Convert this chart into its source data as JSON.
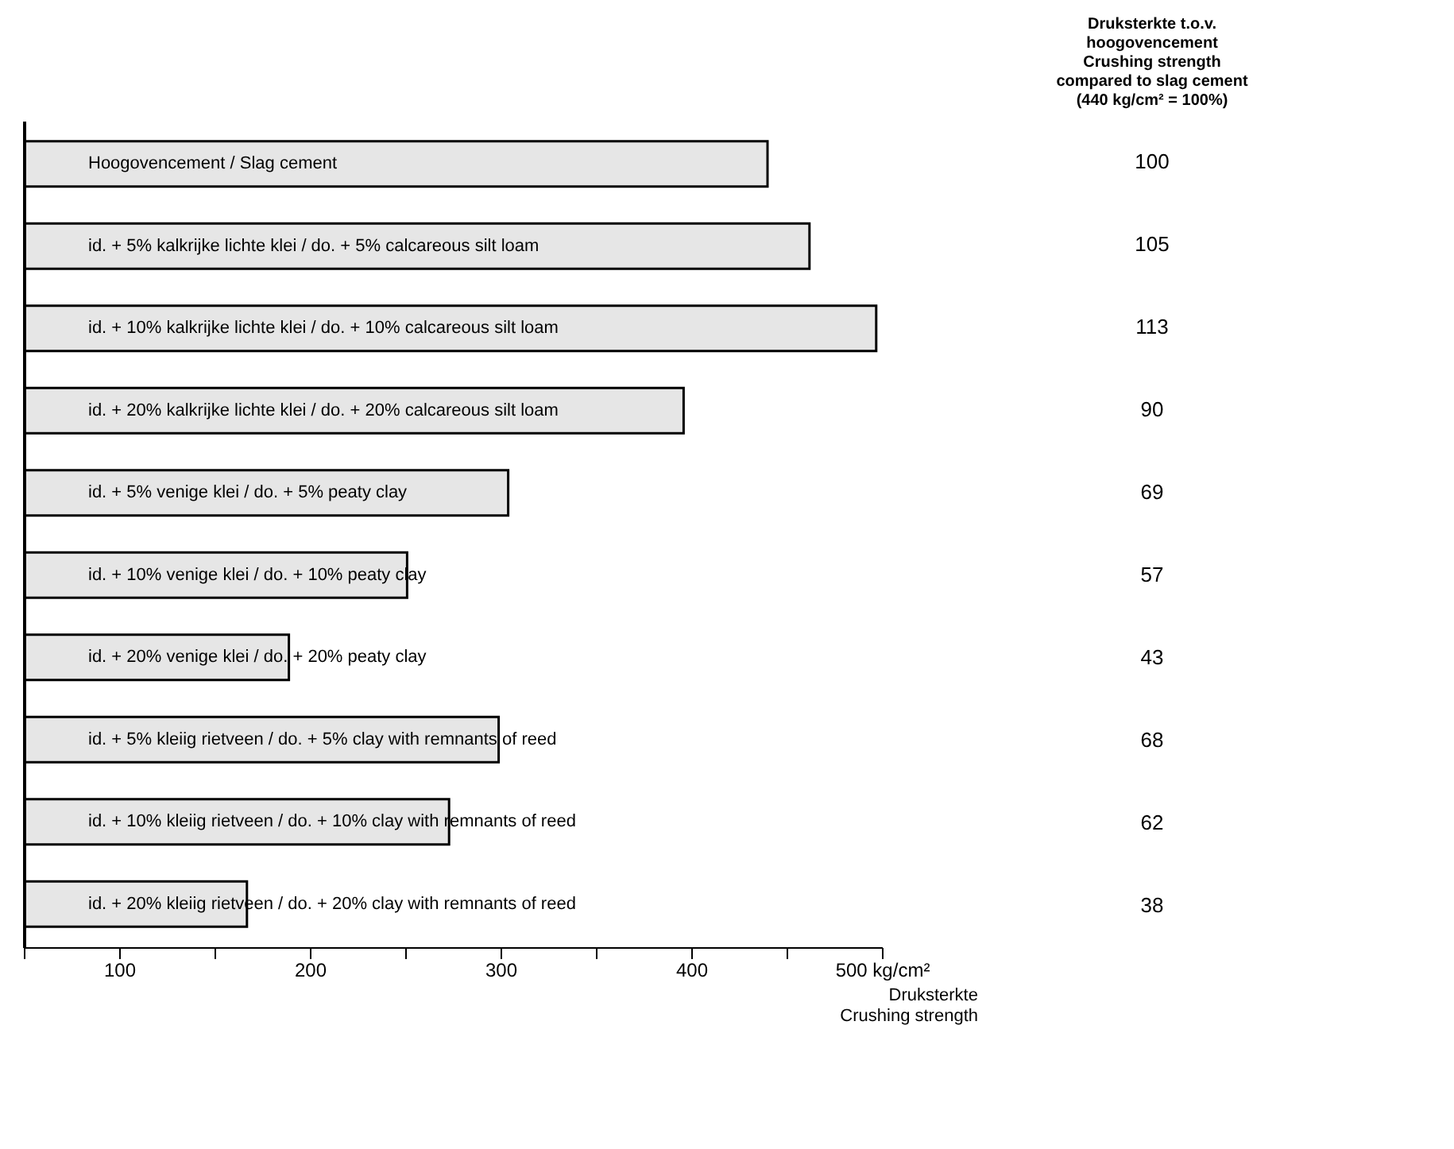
{
  "chart_data": {
    "type": "bar",
    "orientation": "horizontal",
    "categories": [
      "Hoogovencement / Slag cement",
      "id. +  5% kalkrijke lichte klei / do. +  5% calcareous silt loam",
      "id. + 10% kalkrijke lichte klei / do. + 10% calcareous silt loam",
      "id. + 20% kalkrijke lichte klei / do. + 20% calcareous silt loam",
      "id. +  5% venige klei / do. +  5% peaty clay",
      "id. + 10% venige klei / do. + 10% peaty clay",
      "id. + 20% venige klei / do. + 20% peaty clay",
      "id. +  5% kleiig rietveen / do. +  5% clay with remnants of reed",
      "id. + 10% kleiig rietveen / do. + 10% clay with remnants of reed",
      "id. + 20% kleiig rietveen / do. + 20% clay with remnants of reed"
    ],
    "values": [
      440,
      462,
      497,
      396,
      304,
      251,
      189,
      299,
      273,
      167
    ],
    "color": "#e6e6e6",
    "xlabel": "Druksterkte\nCrushing strength",
    "xlim": [
      50,
      500
    ],
    "xticks": [
      {
        "value": 50,
        "label": null
      },
      100,
      {
        "value": 150,
        "label": null
      },
      200,
      {
        "value": 250,
        "label": null
      },
      300,
      {
        "value": 350,
        "label": null
      },
      400,
      {
        "value": 450,
        "label": null
      },
      {
        "value": 500,
        "label": "500 kg/cm²"
      }
    ],
    "annotations": [
      "Druksterkte t.o.v.\nhoogovencement\nCrushing strength\ncompared to slag cement\n(440 kg/cm² = 100%)",
      "100",
      "105",
      "113",
      "90",
      "69",
      "57",
      "43",
      "68",
      "62",
      "38"
    ],
    "grid": false
  }
}
